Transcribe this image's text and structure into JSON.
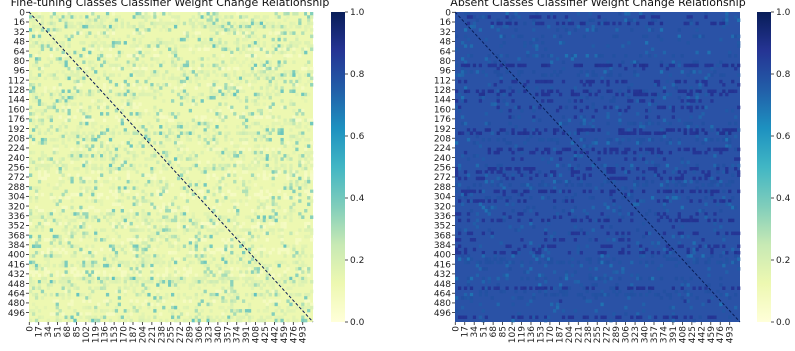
{
  "chart_data": [
    {
      "type": "heatmap",
      "title": "Fine-tuning Classes Classifier Weight Change Relationship",
      "xlabel": "",
      "ylabel": "",
      "y_tick_labels": [
        "0",
        "16",
        "32",
        "48",
        "64",
        "80",
        "96",
        "112",
        "128",
        "144",
        "160",
        "176",
        "192",
        "208",
        "224",
        "240",
        "256",
        "272",
        "288",
        "304",
        "320",
        "336",
        "352",
        "368",
        "384",
        "400",
        "416",
        "432",
        "448",
        "464",
        "480",
        "496"
      ],
      "x_tick_labels": [
        "0",
        "17",
        "34",
        "51",
        "68",
        "85",
        "102",
        "119",
        "136",
        "153",
        "170",
        "187",
        "204",
        "221",
        "238",
        "255",
        "272",
        "289",
        "306",
        "323",
        "340",
        "357",
        "374",
        "391",
        "408",
        "425",
        "442",
        "459",
        "476",
        "493"
      ],
      "colorbar": {
        "cmap": "YlGnBu",
        "vmin": 0.0,
        "vmax": 1.0,
        "ticks": [
          "0.0",
          "0.2",
          "0.4",
          "0.6",
          "0.8",
          "1.0"
        ]
      },
      "values_summary": {
        "diagonal": 1.0,
        "off_diagonal_typical": 0.12,
        "off_diagonal_max": 0.45
      }
    },
    {
      "type": "heatmap",
      "title": "Absent Classes Classifier Weight Change Relationship",
      "xlabel": "",
      "ylabel": "",
      "y_tick_labels": [
        "0",
        "16",
        "32",
        "48",
        "64",
        "80",
        "96",
        "112",
        "128",
        "144",
        "160",
        "176",
        "192",
        "208",
        "224",
        "240",
        "256",
        "272",
        "288",
        "304",
        "320",
        "336",
        "352",
        "368",
        "384",
        "400",
        "416",
        "432",
        "448",
        "464",
        "480",
        "496"
      ],
      "x_tick_labels": [
        "0",
        "17",
        "34",
        "51",
        "68",
        "85",
        "102",
        "119",
        "136",
        "153",
        "170",
        "187",
        "204",
        "221",
        "238",
        "255",
        "272",
        "289",
        "306",
        "323",
        "340",
        "357",
        "374",
        "391",
        "408",
        "425",
        "442",
        "459",
        "476",
        "493"
      ],
      "colorbar": {
        "cmap": "YlGnBu",
        "vmin": 0.0,
        "vmax": 1.0,
        "ticks": [
          "0.0",
          "0.2",
          "0.4",
          "0.6",
          "0.8",
          "1.0"
        ]
      },
      "values_summary": {
        "diagonal": 1.0,
        "off_diagonal_typical": 0.83,
        "off_diagonal_min": 0.7
      }
    }
  ]
}
